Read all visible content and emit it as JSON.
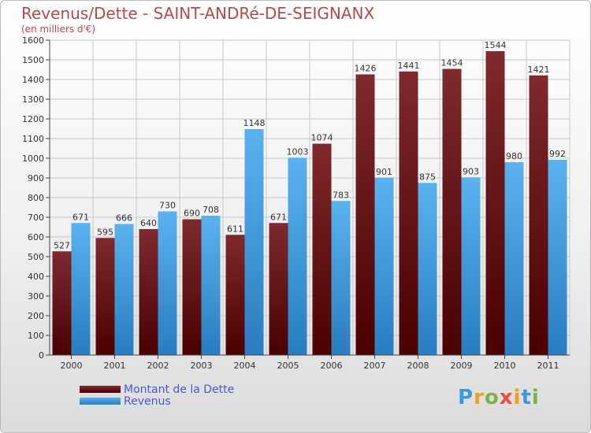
{
  "chart_data": {
    "type": "bar",
    "title": "Revenus/Dette - SAINT-ANDRé-DE-SEIGNANX",
    "subtitle": "(en milliers d'€)",
    "categories": [
      "2000",
      "2001",
      "2002",
      "2003",
      "2004",
      "2005",
      "2006",
      "2007",
      "2008",
      "2009",
      "2010",
      "2011"
    ],
    "series": [
      {
        "name": "Montant de la Dette",
        "color": "#7a1f24",
        "values": [
          527,
          595,
          640,
          690,
          611,
          671,
          1074,
          1426,
          1441,
          1454,
          1544,
          1421
        ]
      },
      {
        "name": "Revenus",
        "color": "#4ea3e6",
        "values": [
          671,
          666,
          730,
          708,
          1148,
          1003,
          783,
          901,
          875,
          903,
          980,
          992
        ]
      }
    ],
    "ylim": [
      0,
      1600
    ],
    "yticks": [
      0,
      100,
      200,
      300,
      400,
      500,
      600,
      700,
      800,
      900,
      1000,
      1100,
      1200,
      1300,
      1400,
      1500,
      1600
    ],
    "grid": true,
    "legend_position": "bottom-left"
  },
  "logo": {
    "letters": [
      "P",
      "r",
      "o",
      "x",
      "i",
      "t",
      "i"
    ],
    "colors": [
      "#3a9ad9",
      "#f0a020",
      "#7cb342",
      "#e94e3c",
      "#f0a020",
      "#3a9ad9",
      "#7cb342"
    ]
  }
}
